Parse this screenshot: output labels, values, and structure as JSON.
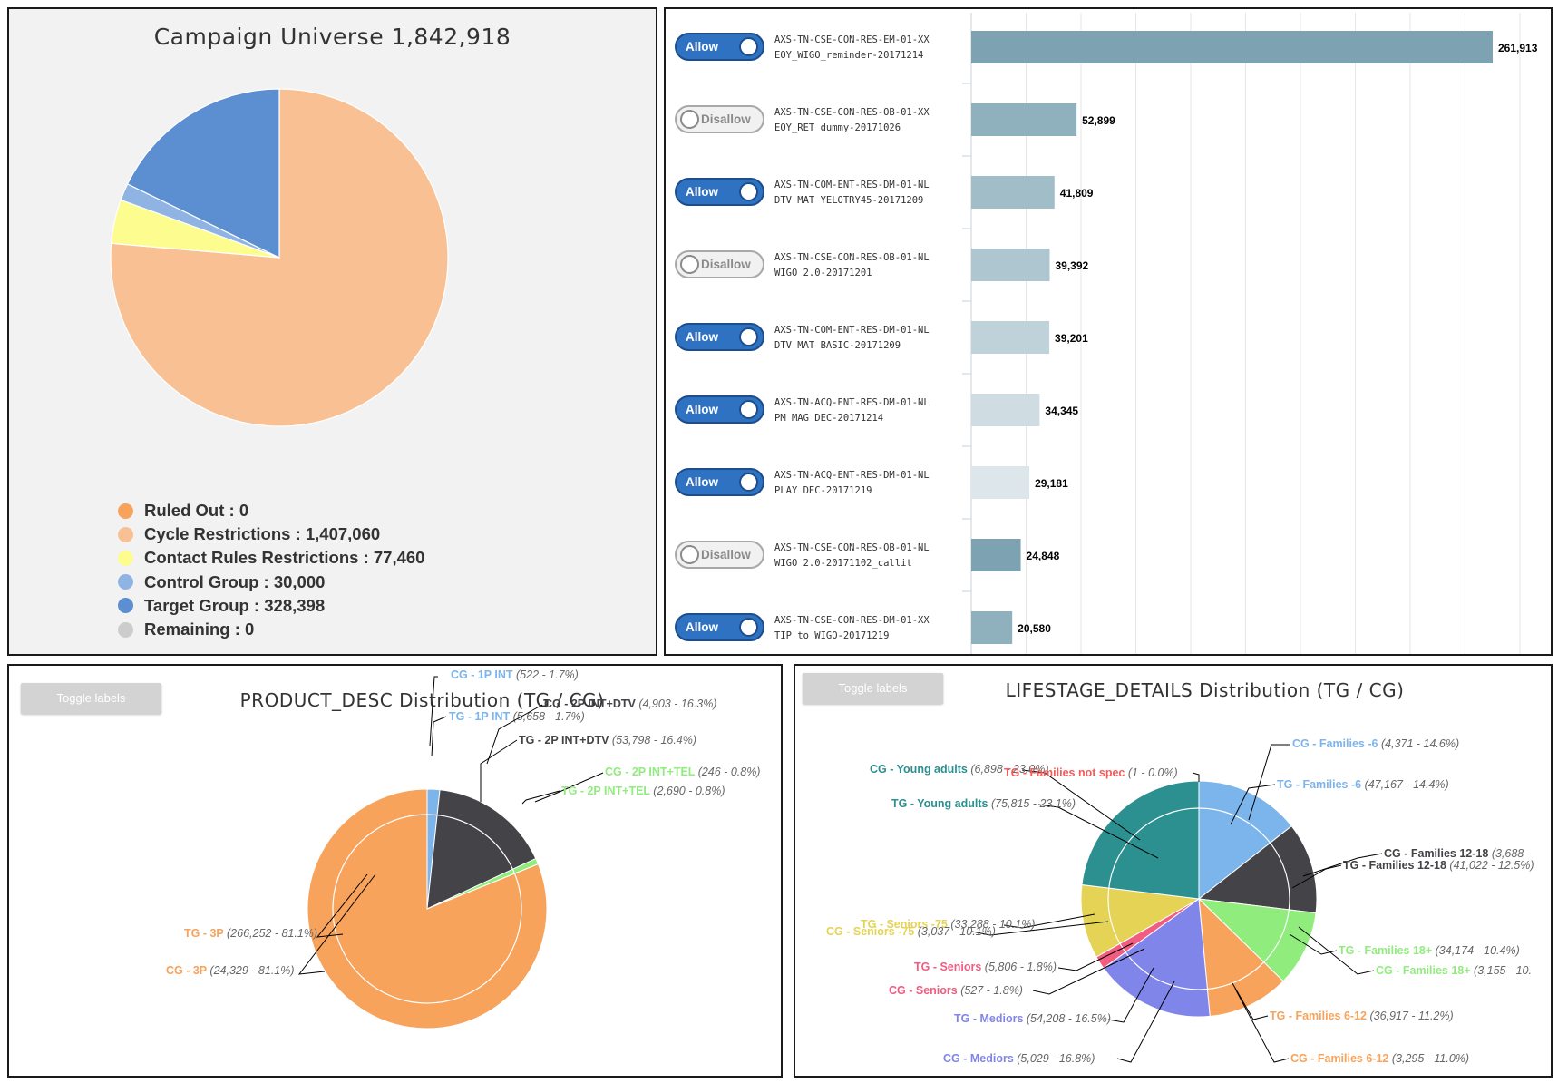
{
  "universe": {
    "title": "Campaign Universe 1,842,918",
    "legend": [
      {
        "label": "Ruled Out : 0",
        "color": "#f7a35c",
        "value": 0
      },
      {
        "label": "Cycle Restrictions : 1,407,060",
        "color": "#f9c193",
        "value": 1407060
      },
      {
        "label": "Contact Rules Restrictions : 77,460",
        "color": "#fdfd8f",
        "value": 77460
      },
      {
        "label": "Control Group : 30,000",
        "color": "#8fb4e3",
        "value": 30000
      },
      {
        "label": "Target Group : 328,398",
        "color": "#5b8fd1",
        "value": 328398
      },
      {
        "label": "Remaining : 0",
        "color": "#cccccc",
        "value": 0
      }
    ]
  },
  "campaigns": {
    "items": [
      {
        "toggle": "Allow",
        "on": true,
        "code": "AXS-TN-CSE-CON-RES-EM-01-XX",
        "name": "EOY_WIGO_reminder-20171214",
        "value": 261913,
        "value_label": "261,913",
        "color": "#7da3b2"
      },
      {
        "toggle": "Disallow",
        "on": false,
        "code": "AXS-TN-CSE-CON-RES-OB-01-XX",
        "name": "EOY_RET dummy-20171026",
        "value": 52899,
        "value_label": "52,899",
        "color": "#8fb0bd"
      },
      {
        "toggle": "Allow",
        "on": true,
        "code": "AXS-TN-COM-ENT-RES-DM-01-NL",
        "name": "DTV MAT YELOTRY45-20171209",
        "value": 41809,
        "value_label": "41,809",
        "color": "#a1bdc8"
      },
      {
        "toggle": "Disallow",
        "on": false,
        "code": "AXS-TN-CSE-CON-RES-OB-01-NL",
        "name": "WIGO 2.0-20171201",
        "value": 39392,
        "value_label": "39,392",
        "color": "#aec6d0"
      },
      {
        "toggle": "Allow",
        "on": true,
        "code": "AXS-TN-COM-ENT-RES-DM-01-NL",
        "name": "DTV MAT BASIC-20171209",
        "value": 39201,
        "value_label": "39,201",
        "color": "#bfd2da"
      },
      {
        "toggle": "Allow",
        "on": true,
        "code": "AXS-TN-ACQ-ENT-RES-DM-01-NL",
        "name": "PM MAG DEC-20171214",
        "value": 34345,
        "value_label": "34,345",
        "color": "#cfdde3"
      },
      {
        "toggle": "Allow",
        "on": true,
        "code": "AXS-TN-ACQ-ENT-RES-DM-01-NL",
        "name": "PLAY DEC-20171219",
        "value": 29181,
        "value_label": "29,181",
        "color": "#dde6ea"
      },
      {
        "toggle": "Disallow",
        "on": false,
        "code": "AXS-TN-CSE-CON-RES-OB-01-NL",
        "name": "WIGO 2.0-20171102_callit",
        "value": 24848,
        "value_label": "24,848",
        "color": "#7da3b2"
      },
      {
        "toggle": "Allow",
        "on": true,
        "code": "AXS-TN-CSE-CON-RES-DM-01-XX",
        "name": "TIP to WIGO-20171219",
        "value": 20580,
        "value_label": "20,580",
        "color": "#8fb0bd"
      }
    ]
  },
  "product": {
    "toggle_label": "Toggle labels",
    "title": "PRODUCT_DESC Distribution (TG / CG)",
    "slices": [
      {
        "name": "1P INT",
        "color": "#7cb5ec",
        "tg": {
          "label": "TG - 1P INT",
          "detail": "(5,658 - 1.7%)",
          "pct": 1.7
        },
        "cg": {
          "label": "CG - 1P INT",
          "detail": "(522 - 1.7%)",
          "pct": 1.7
        }
      },
      {
        "name": "2P INT+DTV",
        "color": "#434348",
        "tg": {
          "label": "TG - 2P INT+DTV",
          "detail": "(53,798 - 16.4%)",
          "pct": 16.4
        },
        "cg": {
          "label": "CG - 2P INT+DTV",
          "detail": "(4,903 - 16.3%)",
          "pct": 16.3
        }
      },
      {
        "name": "2P INT+TEL",
        "color": "#90ed7d",
        "tg": {
          "label": "TG - 2P INT+TEL",
          "detail": "(2,690 - 0.8%)",
          "pct": 0.8
        },
        "cg": {
          "label": "CG - 2P INT+TEL",
          "detail": "(246 - 0.8%)",
          "pct": 0.8
        }
      },
      {
        "name": "3P",
        "color": "#f7a35c",
        "tg": {
          "label": "TG - 3P",
          "detail": "(266,252 - 81.1%)",
          "pct": 81.1
        },
        "cg": {
          "label": "CG - 3P",
          "detail": "(24,329 - 81.1%)",
          "pct": 81.1
        }
      }
    ]
  },
  "lifestage": {
    "toggle_label": "Toggle labels",
    "title": "LIFESTAGE_DETAILS Distribution (TG / CG)",
    "slices": [
      {
        "name": "Families -6",
        "color": "#7cb5ec",
        "tg": {
          "label": "TG - Families -6",
          "detail": "(47,167 - 14.4%)",
          "pct": 14.4
        },
        "cg": {
          "label": "CG - Families -6",
          "detail": "(4,371 - 14.6%)",
          "pct": 14.6
        }
      },
      {
        "name": "Families 12-18",
        "color": "#434348",
        "tg": {
          "label": "TG - Families 12-18",
          "detail": "(41,022 - 12.5%)",
          "pct": 12.5
        },
        "cg": {
          "label": "CG - Families 12-18",
          "detail": "(3,688 -",
          "pct": 12.3
        }
      },
      {
        "name": "Families 18+",
        "color": "#90ed7d",
        "tg": {
          "label": "TG - Families 18+",
          "detail": "(34,174 - 10.4%)",
          "pct": 10.4
        },
        "cg": {
          "label": "CG - Families 18+",
          "detail": "(3,155 - 10.",
          "pct": 10.5
        }
      },
      {
        "name": "Families 6-12",
        "color": "#f7a35c",
        "tg": {
          "label": "TG - Families 6-12",
          "detail": "(36,917 - 11.2%)",
          "pct": 11.2
        },
        "cg": {
          "label": "CG - Families 6-12",
          "detail": "(3,295 - 11.0%)",
          "pct": 11.0
        }
      },
      {
        "name": "Mediors",
        "color": "#8085e9",
        "tg": {
          "label": "TG - Mediors",
          "detail": "(54,208 - 16.5%)",
          "pct": 16.5
        },
        "cg": {
          "label": "CG - Mediors",
          "detail": "(5,029 - 16.8%)",
          "pct": 16.8
        }
      },
      {
        "name": "Seniors",
        "color": "#f15c80",
        "tg": {
          "label": "TG - Seniors",
          "detail": "(5,806 - 1.8%)",
          "pct": 1.8
        },
        "cg": {
          "label": "CG - Seniors",
          "detail": "(527 - 1.8%)",
          "pct": 1.8
        }
      },
      {
        "name": "Seniors -75",
        "color": "#e4d354",
        "tg": {
          "label": "TG - Seniors -75",
          "detail": "(33,288 - 10.1%)",
          "pct": 10.1
        },
        "cg": {
          "label": "CG - Seniors -75",
          "detail": "(3,037 - 10.1%)",
          "pct": 10.1
        }
      },
      {
        "name": "Young adults",
        "color": "#2b908f",
        "tg": {
          "label": "TG - Young adults",
          "detail": "(75,815 - 23.1%)",
          "pct": 23.1
        },
        "cg": {
          "label": "CG - Young adults",
          "detail": "(6,898 - 23.0%)",
          "pct": 23.0
        }
      },
      {
        "name": "Families not spec",
        "color": "#f45b5b",
        "tg": {
          "label": "TG - Families not spec",
          "detail": "(1 - 0.0%)",
          "pct": 0.0
        },
        "cg": {
          "label": "",
          "detail": "",
          "pct": 0.0
        }
      }
    ]
  }
}
